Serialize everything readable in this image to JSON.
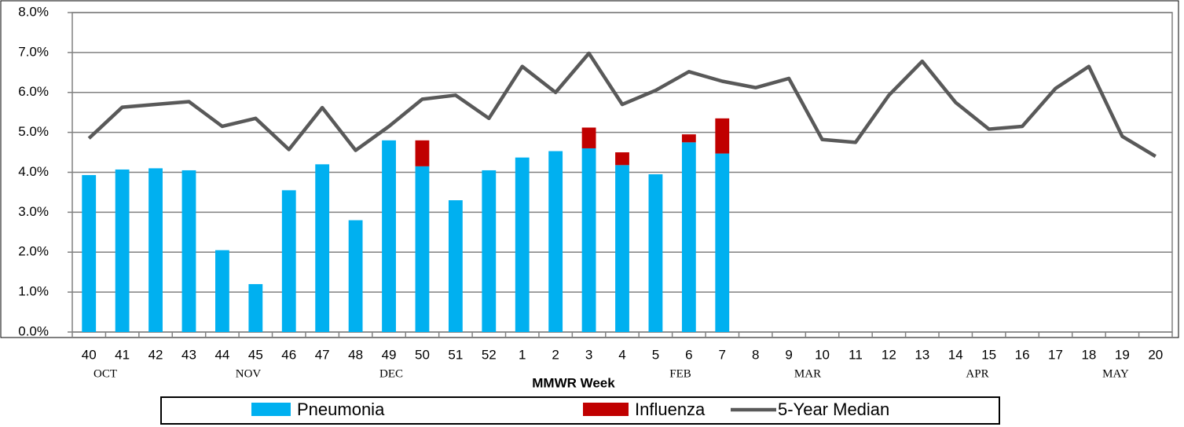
{
  "chart_data": {
    "type": "bar",
    "x_label": "MMWR Week",
    "categories": [
      "40",
      "41",
      "42",
      "43",
      "44",
      "45",
      "46",
      "47",
      "48",
      "49",
      "50",
      "51",
      "52",
      "1",
      "2",
      "3",
      "4",
      "5",
      "6",
      "7",
      "8",
      "9",
      "10",
      "11",
      "12",
      "13",
      "14",
      "15",
      "16",
      "17",
      "18",
      "19",
      "20"
    ],
    "month_labels": [
      "OCT",
      "NOV",
      "DEC",
      "FEB",
      "MAR",
      "APR",
      "MAY"
    ],
    "series": [
      {
        "name": "Pneumonia",
        "type": "bar",
        "color": "#00b0f0",
        "values": [
          3.93,
          4.07,
          4.1,
          4.05,
          2.05,
          1.2,
          3.55,
          4.2,
          2.8,
          4.8,
          4.15,
          3.3,
          4.05,
          4.37,
          4.53,
          4.6,
          4.18,
          3.95,
          4.75,
          4.47,
          null,
          null,
          null,
          null,
          null,
          null,
          null,
          null,
          null,
          null,
          null,
          null,
          null
        ]
      },
      {
        "name": "Influenza",
        "type": "bar",
        "color": "#c00000",
        "values": [
          null,
          null,
          null,
          null,
          null,
          null,
          null,
          null,
          null,
          null,
          0.65,
          null,
          null,
          null,
          null,
          0.52,
          0.32,
          null,
          0.2,
          0.88,
          null,
          null,
          null,
          null,
          null,
          null,
          null,
          null,
          null,
          null,
          null,
          null,
          null
        ]
      },
      {
        "name": "5-Year Median",
        "type": "line",
        "color": "#595959",
        "values": [
          4.85,
          5.63,
          5.7,
          5.77,
          5.15,
          5.35,
          4.57,
          5.62,
          4.55,
          5.15,
          5.83,
          5.93,
          5.35,
          6.65,
          6.0,
          6.98,
          5.7,
          6.05,
          6.52,
          6.28,
          6.12,
          6.35,
          4.82,
          4.75,
          5.93,
          6.78,
          5.75,
          5.08,
          5.15,
          6.1,
          6.65,
          4.9,
          4.4
        ]
      }
    ],
    "stacked": true,
    "ylim": [
      0,
      8
    ],
    "yticks": [
      {
        "value": 0,
        "label": "0.0%"
      },
      {
        "value": 1,
        "label": "1.0%"
      },
      {
        "value": 2,
        "label": "2.0%"
      },
      {
        "value": 3,
        "label": "3.0%"
      },
      {
        "value": 4,
        "label": "4.0%"
      },
      {
        "value": 5,
        "label": "5.0%"
      },
      {
        "value": 6,
        "label": "6.0%"
      },
      {
        "value": 7,
        "label": "7.0%"
      },
      {
        "value": 8,
        "label": "8.0%"
      }
    ],
    "grid": true,
    "legend": "bottom"
  }
}
